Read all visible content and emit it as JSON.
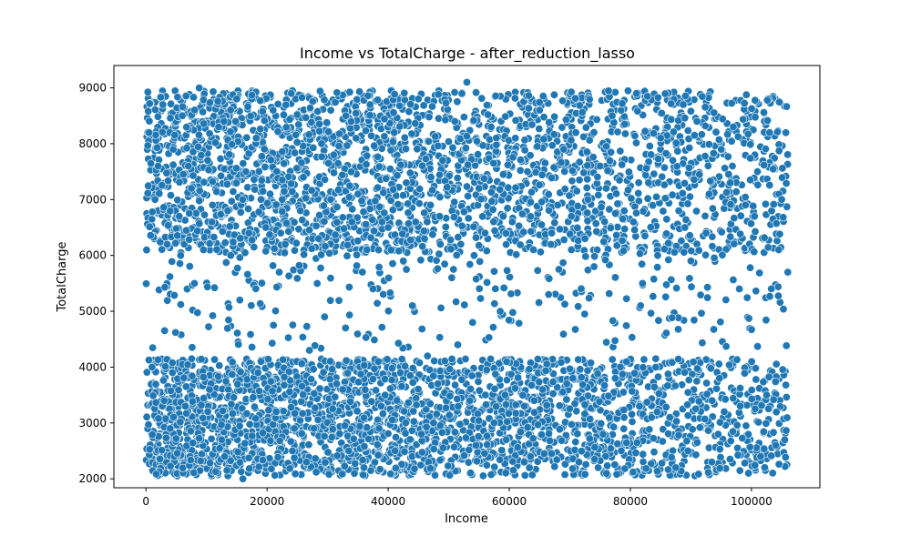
{
  "chart_data": {
    "type": "scatter",
    "title": "Income vs TotalCharge - after_reduction_lasso",
    "xlabel": "Income",
    "ylabel": "TotalCharge",
    "xlim": [
      -5300,
      111300
    ],
    "ylim": [
      1840,
      9400
    ],
    "xticks": [
      0,
      20000,
      40000,
      60000,
      80000,
      100000
    ],
    "xtick_labels": [
      "0",
      "20000",
      "40000",
      "60000",
      "80000",
      "100000"
    ],
    "yticks": [
      2000,
      3000,
      4000,
      5000,
      6000,
      7000,
      8000,
      9000
    ],
    "ytick_labels": [
      "2000",
      "3000",
      "4000",
      "5000",
      "6000",
      "7000",
      "8000",
      "9000"
    ],
    "grid": false,
    "color": "#1f77b4",
    "edge_color": "#ffffff",
    "series": [
      {
        "x": [
          500,
          2000,
          2800,
          4500,
          6000,
          7500,
          8800,
          10200,
          12000,
          13500,
          15000,
          16500,
          18200,
          19800,
          21000,
          22500,
          24000,
          26000,
          27500,
          29000,
          31000,
          33000,
          35000,
          37000,
          39000,
          41000,
          43000,
          45000,
          47000,
          49000,
          51000,
          53000,
          55000,
          57000,
          59000,
          61000,
          63000,
          65000,
          67000,
          69000,
          71000,
          73000,
          75000,
          77000,
          79000,
          81000,
          83000,
          85000,
          87000,
          89000,
          91000,
          93000,
          95000,
          97000,
          99000,
          101000,
          103000,
          105000,
          1500,
          3500,
          5500,
          7000,
          9500,
          11000,
          14000,
          17000,
          20500,
          23000,
          25500,
          28500,
          30500,
          34000,
          36500,
          40000,
          42500,
          46000,
          48500,
          52000,
          56000,
          60500,
          64000,
          68000,
          72500,
          76000,
          80500,
          84500,
          88000,
          92500,
          96500,
          100500,
          104500,
          8000,
          15500,
          22000,
          29500,
          37500,
          44000,
          50500,
          58500,
          66500,
          74000,
          82000,
          90000,
          98000,
          106000,
          3000,
          12500,
          18500,
          26500,
          32500,
          38500,
          46500,
          54500,
          62500,
          70500,
          78500,
          86500,
          94500,
          102500,
          1000,
          6500,
          13000,
          19000,
          24500,
          31500,
          36000,
          42000,
          47500,
          53500,
          59500,
          65500,
          71500,
          77500,
          83500,
          89500,
          95500,
          101500,
          104000,
          4000,
          10500,
          16000,
          21500,
          27000,
          33500,
          39500,
          45500,
          51500,
          57500,
          63500,
          69500,
          75500,
          81500,
          87500,
          93500,
          99500,
          105500
        ],
        "y": [
          8200,
          7600,
          8700,
          7900,
          8500,
          7200,
          9000,
          7700,
          8300,
          6800,
          8800,
          7500,
          8100,
          6500,
          8600,
          7000,
          8900,
          7400,
          6300,
          8000,
          7800,
          8500,
          7100,
          8700,
          6600,
          8200,
          7300,
          8800,
          6900,
          7700,
          8400,
          9100,
          7200,
          8300,
          6700,
          8100,
          7500,
          8600,
          6400,
          7900,
          8200,
          7000,
          7600,
          8500,
          6800,
          8900,
          7300,
          8100,
          7700,
          6500,
          8400,
          7100,
          7900,
          8300,
          6900,
          7500,
          8200,
          7000,
          7000,
          6200,
          6700,
          7600,
          6100,
          6900,
          6000,
          6400,
          7100,
          6200,
          6800,
          6300,
          7000,
          6600,
          6100,
          6500,
          5900,
          6300,
          6700,
          6200,
          6400,
          6600,
          6100,
          6900,
          6300,
          7200,
          6600,
          6000,
          6800,
          6400,
          7300,
          6700,
          6100,
          5500,
          5200,
          5700,
          4900,
          5400,
          5100,
          5600,
          5000,
          5300,
          5800,
          5500,
          5900,
          5400,
          5700,
          3400,
          2700,
          3900,
          2300,
          3600,
          2900,
          4200,
          2600,
          3300,
          3800,
          2500,
          3100,
          2800,
          3500,
          4000,
          3300,
          2400,
          4100,
          2900,
          3700,
          2200,
          3900,
          3000,
          3400,
          2700,
          3600,
          2300,
          3800,
          3100,
          2500,
          3200,
          2400,
          2600,
          2900,
          3600,
          2000,
          3200,
          4300,
          2500,
          3500,
          2800,
          4400,
          3000,
          2400,
          3700,
          2800,
          3300,
          2200,
          3400,
          2100,
          2700
        ],
        "density_bands": [
          {
            "y_center": 7500,
            "y_spread": 1450,
            "x_density_decay": 0.55
          },
          {
            "y_center": 3100,
            "y_spread": 1050,
            "x_density_decay": 0.55
          }
        ]
      }
    ]
  }
}
